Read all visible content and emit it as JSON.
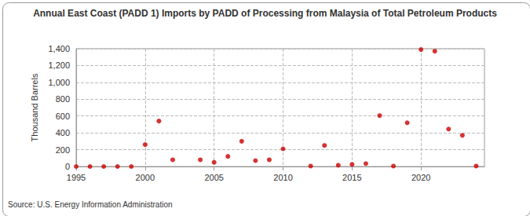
{
  "chart_data": {
    "type": "scatter",
    "title": "Annual East Coast (PADD 1) Imports by PADD of Processing from Malaysia of Total Petroleum Products",
    "y_label": "Thousand Barrels",
    "source": "Source: U.S. Energy Information Administration",
    "x": [
      1995,
      1996,
      1997,
      1998,
      1999,
      2000,
      2001,
      2002,
      2004,
      2005,
      2006,
      2007,
      2008,
      2009,
      2010,
      2012,
      2013,
      2014,
      2015,
      2016,
      2017,
      2018,
      2019,
      2020,
      2021,
      2022,
      2023,
      2024
    ],
    "values": [
      0,
      0,
      0,
      0,
      0,
      260,
      540,
      80,
      80,
      50,
      120,
      300,
      70,
      80,
      210,
      5,
      250,
      15,
      25,
      35,
      605,
      5,
      520,
      1390,
      1370,
      445,
      370,
      5
    ],
    "color": "#cc0000",
    "marker": "circle",
    "xlim": [
      1995,
      2024.6
    ],
    "xticks": [
      1995,
      2000,
      2005,
      2010,
      2015,
      2020
    ],
    "ylim": [
      0,
      1400
    ],
    "yticks": [
      0,
      200,
      400,
      600,
      800,
      {
        "value": 1000,
        "label": "1,000"
      },
      {
        "value": 1200,
        "label": "1,200"
      },
      {
        "value": 1400,
        "label": "1,400"
      }
    ],
    "grid": true
  }
}
